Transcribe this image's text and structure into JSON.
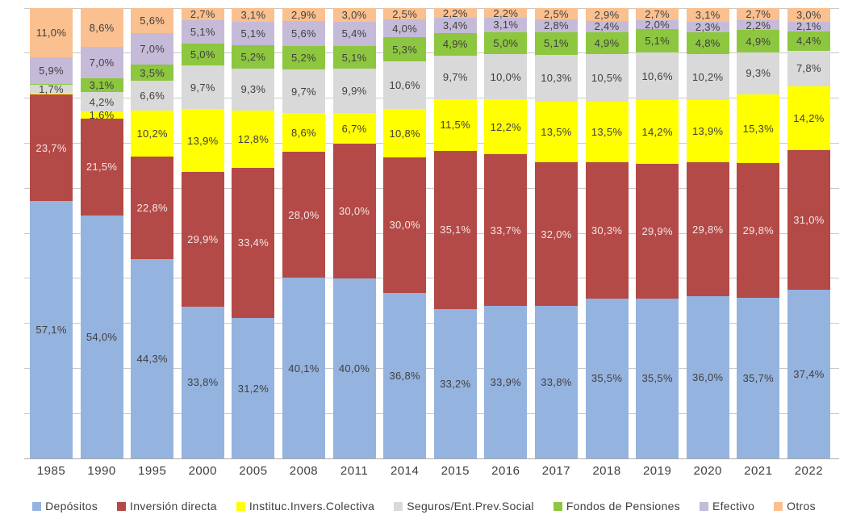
{
  "chart_data": {
    "type": "bar",
    "stacked": true,
    "unit": "%",
    "title": "",
    "xlabel": "",
    "ylabel": "",
    "ylim": [
      0,
      100
    ],
    "grid": true,
    "grid_interval": 10,
    "legend_position": "bottom",
    "decimal_separator": ",",
    "label_min_value": 1.0,
    "text_color": "#3F3F3F",
    "gridline_color": "#C9C9C9",
    "baseline_color": "#ABABAB",
    "categories": [
      "1985",
      "1990",
      "1995",
      "2000",
      "2005",
      "2008",
      "2011",
      "2014",
      "2015",
      "2016",
      "2017",
      "2018",
      "2019",
      "2020",
      "2021",
      "2022"
    ],
    "series": [
      {
        "name": "Depósitos",
        "color": "#95B3DF",
        "label_color": "#3F3F3F",
        "values": [
          57.1,
          54.0,
          44.3,
          33.8,
          31.2,
          40.1,
          40.0,
          36.8,
          33.2,
          33.9,
          33.8,
          35.5,
          35.5,
          36.0,
          35.7,
          37.4
        ]
      },
      {
        "name": "Inversión directa",
        "color": "#B34A47",
        "label_color": "#F5E6E5",
        "values": [
          23.7,
          21.5,
          22.8,
          29.9,
          33.4,
          28.0,
          30.0,
          30.0,
          35.1,
          33.7,
          32.0,
          30.3,
          29.9,
          29.8,
          29.8,
          31.0
        ]
      },
      {
        "name": "Instituc.Invers.Colectiva",
        "color": "#FFFF00",
        "label_color": "#3F3F3F",
        "values": [
          0.4,
          1.6,
          10.2,
          13.9,
          12.8,
          8.6,
          6.7,
          10.8,
          11.5,
          12.2,
          13.5,
          13.5,
          14.2,
          13.9,
          15.3,
          14.2
        ]
      },
      {
        "name": "Seguros/Ent.Prev.Social",
        "color": "#D9D9D9",
        "label_color": "#3F3F3F",
        "values": [
          1.7,
          4.2,
          6.6,
          9.7,
          9.3,
          9.7,
          9.9,
          10.6,
          9.7,
          10.0,
          10.3,
          10.5,
          10.6,
          10.2,
          9.3,
          7.8
        ]
      },
      {
        "name": "Fondos de Pensiones",
        "color": "#8DC63F",
        "label_color": "#3F3F3F",
        "values": [
          0.2,
          3.1,
          3.5,
          5.0,
          5.2,
          5.2,
          5.1,
          5.3,
          4.9,
          5.0,
          5.1,
          4.9,
          5.1,
          4.8,
          4.9,
          4.4
        ]
      },
      {
        "name": "Efectivo",
        "color": "#C5BBD8",
        "label_color": "#3F3F3F",
        "values": [
          5.9,
          7.0,
          7.0,
          5.1,
          5.1,
          5.6,
          5.4,
          4.0,
          3.4,
          3.1,
          2.8,
          2.4,
          2.0,
          2.3,
          2.2,
          2.1
        ]
      },
      {
        "name": "Otros",
        "color": "#FAC090",
        "label_color": "#3F3F3F",
        "values": [
          11.0,
          8.6,
          5.6,
          2.7,
          3.1,
          2.9,
          3.0,
          2.5,
          2.2,
          2.2,
          2.5,
          2.9,
          2.7,
          3.1,
          2.7,
          3.0
        ]
      }
    ]
  }
}
